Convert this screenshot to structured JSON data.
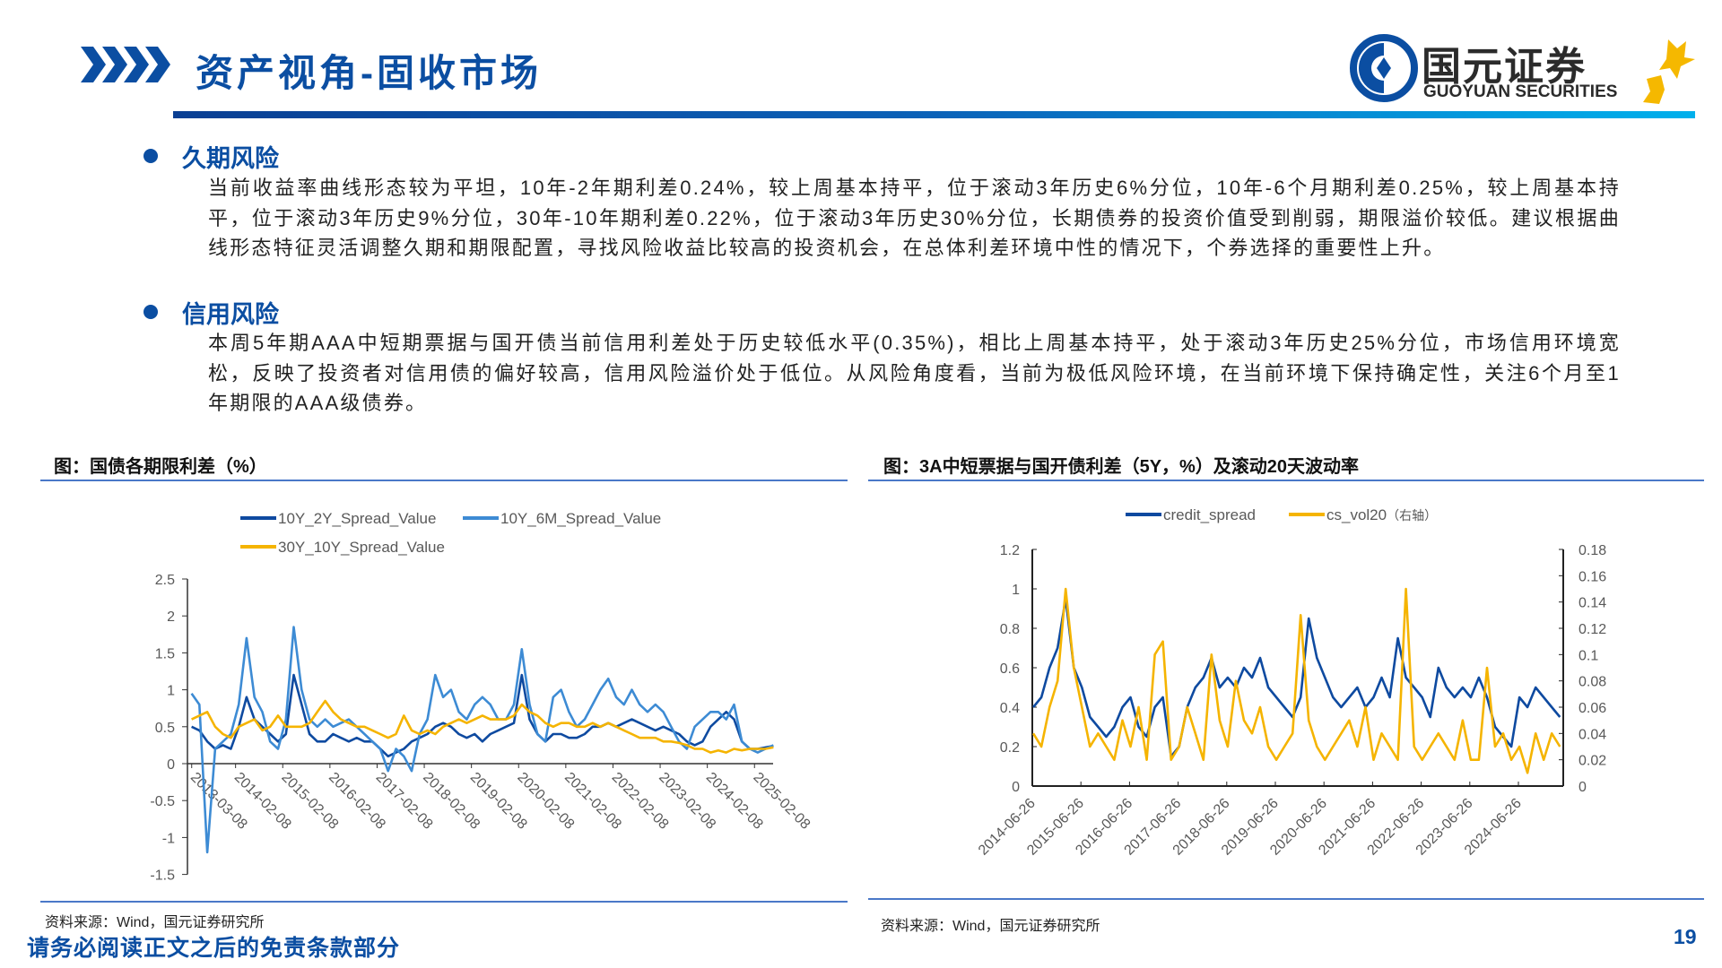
{
  "header": {
    "title": "资产视角-固收市场",
    "logo_cn": "国元证券",
    "logo_en": "GUOYUAN SECURITIES"
  },
  "sections": [
    {
      "heading": "久期风险",
      "body": "当前收益率曲线形态较为平坦，10年-2年期利差0.24%，较上周基本持平，位于滚动3年历史6%分位，10年-6个月期利差0.25%，较上周基本持平，位于滚动3年历史9%分位，30年-10年期利差0.22%，位于滚动3年历史30%分位，长期债券的投资价值受到削弱，期限溢价较低。建议根据曲线形态特征灵活调整久期和期限配置，寻找风险收益比较高的投资机会，在总体利差环境中性的情况下，个券选择的重要性上升。"
    },
    {
      "heading": "信用风险",
      "body": "本周5年期AAA中短期票据与国开债当前信用利差处于历史较低水平(0.35%)，相比上周基本持平，处于滚动3年历史25%分位，市场信用环境宽松，反映了投资者对信用债的偏好较高，信用风险溢价处于低位。从风险角度看，当前为极低风险环境，在当前环境下保持确定性，关注6个月至1年期限的AAA级债券。"
    }
  ],
  "footer": {
    "disclaimer": "请务必阅读正文之后的免责条款部分",
    "page_number": "19"
  },
  "chart_data": [
    {
      "type": "line",
      "title": "图：国债各期限利差（%）",
      "source": "资料来源：Wind，国元证券研究所",
      "ylim": [
        -1.5,
        2.5
      ],
      "y_ticks": [
        "2.5",
        "2",
        "1.5",
        "1",
        "0.5",
        "0",
        "-0.5",
        "-1",
        "-1.5"
      ],
      "x_ticks": [
        "2013-03-08",
        "2014-02-08",
        "2015-02-08",
        "2016-02-08",
        "2017-02-08",
        "2018-02-08",
        "2019-02-08",
        "2020-02-08",
        "2021-02-08",
        "2022-02-08",
        "2023-02-08",
        "2024-02-08",
        "2025-02-08"
      ],
      "x_start": "2013-03",
      "x_step_months": 2,
      "legend_position": "top",
      "series": [
        {
          "name": "10Y_2Y_Spread_Value",
          "color": "#0e4aa0",
          "values": [
            0.5,
            0.45,
            0.3,
            0.2,
            0.25,
            0.2,
            0.5,
            0.9,
            0.6,
            0.5,
            0.4,
            0.3,
            0.4,
            1.2,
            0.8,
            0.4,
            0.3,
            0.3,
            0.4,
            0.35,
            0.3,
            0.35,
            0.3,
            0.3,
            0.2,
            0.1,
            0.15,
            0.2,
            0.3,
            0.35,
            0.4,
            0.5,
            0.55,
            0.5,
            0.4,
            0.35,
            0.4,
            0.3,
            0.4,
            0.45,
            0.5,
            0.55,
            1.2,
            0.6,
            0.4,
            0.3,
            0.4,
            0.4,
            0.35,
            0.35,
            0.4,
            0.5,
            0.5,
            0.55,
            0.5,
            0.55,
            0.6,
            0.55,
            0.5,
            0.45,
            0.5,
            0.45,
            0.4,
            0.3,
            0.25,
            0.3,
            0.5,
            0.6,
            0.7,
            0.6,
            0.3,
            0.2,
            0.2,
            0.22,
            0.24
          ]
        },
        {
          "name": "10Y_6M_Spread_Value",
          "color": "#3d8bd4",
          "values": [
            0.95,
            0.8,
            -1.2,
            0.2,
            0.3,
            0.4,
            0.8,
            1.7,
            0.9,
            0.7,
            0.3,
            0.2,
            0.6,
            1.85,
            1.0,
            0.6,
            0.5,
            0.6,
            0.5,
            0.55,
            0.6,
            0.5,
            0.4,
            0.3,
            0.2,
            -0.1,
            0.2,
            0.1,
            -0.1,
            0.4,
            0.6,
            1.2,
            0.9,
            1.0,
            0.7,
            0.6,
            0.8,
            0.9,
            0.8,
            0.6,
            0.6,
            0.8,
            1.55,
            0.8,
            0.4,
            0.3,
            0.9,
            1.0,
            0.7,
            0.5,
            0.6,
            0.8,
            1.0,
            1.15,
            0.9,
            0.8,
            1.0,
            0.8,
            0.7,
            0.8,
            0.7,
            0.5,
            0.3,
            0.2,
            0.5,
            0.6,
            0.7,
            0.7,
            0.6,
            0.8,
            0.3,
            0.2,
            0.15,
            0.2,
            0.25
          ]
        },
        {
          "name": "30Y_10Y_Spread_Value",
          "color": "#f5b400",
          "values": [
            0.6,
            0.65,
            0.7,
            0.5,
            0.4,
            0.35,
            0.5,
            0.55,
            0.6,
            0.45,
            0.5,
            0.65,
            0.5,
            0.5,
            0.5,
            0.55,
            0.7,
            0.85,
            0.7,
            0.6,
            0.55,
            0.5,
            0.5,
            0.45,
            0.4,
            0.35,
            0.4,
            0.65,
            0.45,
            0.4,
            0.45,
            0.4,
            0.5,
            0.55,
            0.6,
            0.55,
            0.6,
            0.65,
            0.6,
            0.6,
            0.6,
            0.65,
            0.8,
            0.7,
            0.65,
            0.55,
            0.5,
            0.55,
            0.55,
            0.5,
            0.5,
            0.55,
            0.5,
            0.55,
            0.5,
            0.45,
            0.4,
            0.35,
            0.35,
            0.35,
            0.3,
            0.3,
            0.28,
            0.25,
            0.2,
            0.2,
            0.15,
            0.18,
            0.15,
            0.2,
            0.18,
            0.2,
            0.2,
            0.2,
            0.22
          ]
        }
      ]
    },
    {
      "type": "line",
      "title": "图：3A中短票据与国开债利差（5Y，%）及滚动20天波动率",
      "source": "资料来源：Wind，国元证券研究所",
      "ylim": [
        0,
        1.2
      ],
      "y2lim": [
        0,
        0.18
      ],
      "y_ticks": [
        "1.2",
        "1",
        "0.8",
        "0.6",
        "0.4",
        "0.2",
        "0"
      ],
      "y2_ticks": [
        "0.18",
        "0.16",
        "0.14",
        "0.12",
        "0.1",
        "0.08",
        "0.06",
        "0.04",
        "0.02",
        "0"
      ],
      "x_ticks": [
        "2014-06-26",
        "2015-06-26",
        "2016-06-26",
        "2017-06-26",
        "2018-06-26",
        "2019-06-26",
        "2020-06-26",
        "2021-06-26",
        "2022-06-26",
        "2023-06-26",
        "2024-06-26"
      ],
      "x_start": "2014-07",
      "x_step_months": 2,
      "legend_position": "top",
      "series": [
        {
          "name": "credit_spread",
          "axis": "left",
          "color": "#0e4aa0",
          "values": [
            0.4,
            0.45,
            0.6,
            0.7,
            0.95,
            0.6,
            0.5,
            0.35,
            0.3,
            0.25,
            0.3,
            0.4,
            0.45,
            0.3,
            0.25,
            0.4,
            0.45,
            0.15,
            0.2,
            0.4,
            0.5,
            0.55,
            0.65,
            0.5,
            0.55,
            0.5,
            0.6,
            0.55,
            0.65,
            0.5,
            0.45,
            0.4,
            0.35,
            0.45,
            0.85,
            0.65,
            0.55,
            0.45,
            0.4,
            0.45,
            0.5,
            0.4,
            0.45,
            0.55,
            0.45,
            0.75,
            0.55,
            0.5,
            0.45,
            0.35,
            0.6,
            0.5,
            0.45,
            0.5,
            0.45,
            0.55,
            0.45,
            0.3,
            0.25,
            0.2,
            0.45,
            0.4,
            0.5,
            0.45,
            0.4,
            0.35
          ]
        },
        {
          "name": "cs_vol20",
          "axis_note": "（右轴）",
          "axis": "right",
          "color": "#f5b400",
          "values": [
            0.04,
            0.03,
            0.06,
            0.08,
            0.15,
            0.09,
            0.06,
            0.03,
            0.04,
            0.03,
            0.02,
            0.05,
            0.03,
            0.06,
            0.02,
            0.1,
            0.11,
            0.02,
            0.03,
            0.06,
            0.04,
            0.02,
            0.1,
            0.05,
            0.03,
            0.08,
            0.05,
            0.04,
            0.06,
            0.03,
            0.02,
            0.03,
            0.04,
            0.13,
            0.05,
            0.03,
            0.02,
            0.03,
            0.04,
            0.05,
            0.03,
            0.06,
            0.02,
            0.04,
            0.03,
            0.02,
            0.15,
            0.03,
            0.02,
            0.03,
            0.04,
            0.03,
            0.02,
            0.05,
            0.02,
            0.02,
            0.09,
            0.03,
            0.04,
            0.02,
            0.03,
            0.01,
            0.04,
            0.02,
            0.04,
            0.03
          ]
        }
      ]
    }
  ]
}
